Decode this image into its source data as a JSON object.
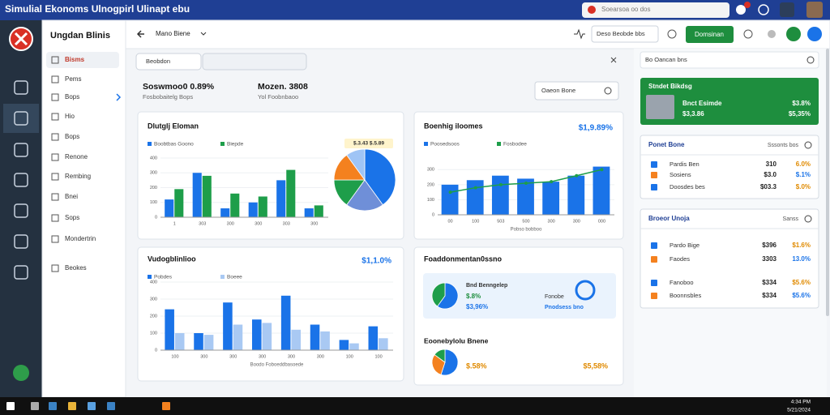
{
  "window_title": "Simulial Ekonoms Ulnogpirl Ulinapt ebu",
  "search_placeholder": "Soearsoa oo dos",
  "app_name": "Ungdan Blinis",
  "menu": [
    "Bisms",
    "Pems",
    "Bops",
    "Hio",
    "Bops",
    "Renone",
    "Rembing",
    "Bnei",
    "Sops",
    "Mondertrin",
    "Beokes"
  ],
  "header": {
    "view": "Mano Biene",
    "date_range": "Deso Beobde bbs",
    "button": "Domsinan"
  },
  "filters": [
    "Beobdon"
  ],
  "summary": [
    {
      "title": "Soswmoo0 0.89%",
      "subtitle": "Fosbobaitelg Bops"
    },
    {
      "title": "Mozen. 3808",
      "subtitle": "Yol Foobnbaoo"
    }
  ],
  "summary_button": "Oaeon Bone",
  "chart_data": [
    {
      "type": "bar",
      "title": "Dlutglj Eloman",
      "categories": [
        "1",
        "303",
        "300",
        "300",
        "303",
        "300"
      ],
      "series": [
        {
          "name": "Boobtbas Goono",
          "color": "#1a73e8",
          "values": [
            120,
            300,
            60,
            100,
            250,
            60
          ]
        },
        {
          "name": "Biepde",
          "color": "#1e9e4a",
          "values": [
            190,
            280,
            160,
            140,
            320,
            80
          ]
        }
      ],
      "ylim": [
        0,
        400
      ],
      "yticks": [
        0,
        100,
        200,
        300,
        400
      ]
    },
    {
      "type": "pie",
      "values": [
        40,
        20,
        15,
        15,
        10
      ],
      "colors": [
        "#1a73e8",
        "#6f8fd8",
        "#1e9e4a",
        "#f4811f",
        "#9fc4f5"
      ],
      "annotation": "$.3.43 $.5.89"
    },
    {
      "type": "bar",
      "title": "Boenhig iloomes",
      "annotation": "$1,9.89%",
      "categories": [
        "00",
        "100",
        "503",
        "500",
        "300",
        "300",
        "000"
      ],
      "series": [
        {
          "name": "Poosedsoos",
          "color": "#1a73e8",
          "values": [
            200,
            230,
            260,
            240,
            220,
            260,
            320
          ]
        },
        {
          "name": "Fosbodee",
          "color": "#1e9e4a",
          "type": "line",
          "values": [
            150,
            180,
            200,
            210,
            220,
            260,
            300
          ]
        }
      ],
      "xlabel": "Pobso bobboo",
      "ylim": [
        0,
        350
      ],
      "yticks": [
        0,
        100,
        200,
        300
      ]
    },
    {
      "type": "bar",
      "title": "Vudogblinlioo",
      "annotation": "$1,1.0%",
      "categories": [
        "100",
        "300",
        "300",
        "300",
        "300",
        "300",
        "100",
        "100"
      ],
      "series": [
        {
          "name": "Pobdes",
          "color": "#1a73e8",
          "values": [
            240,
            100,
            280,
            180,
            320,
            150,
            60,
            140
          ]
        },
        {
          "name": "Boeee",
          "color": "#a9c9f3",
          "values": [
            100,
            90,
            150,
            160,
            120,
            110,
            40,
            70
          ]
        }
      ],
      "xlabel": "Boodo Foboeddbasoede",
      "ylim": [
        0,
        400
      ],
      "yticks": [
        0,
        100,
        200,
        300,
        400
      ]
    }
  ],
  "card4": {
    "title": "Foaddonmentan0ssno",
    "panel_label": "Bnd Benngelep",
    "panel_values": [
      "$.8%",
      "$3,96%"
    ],
    "panel_label2": "Fonobe",
    "panel_sub": "Pnodsess bno",
    "pie_values": [
      60,
      40
    ],
    "section_title": "Eoonebylolu Bnene",
    "section_values": [
      "$.58%",
      "$5,58%"
    ],
    "pie2_values": [
      55,
      30,
      15
    ]
  },
  "right": {
    "top": "Bo Oancan bns",
    "green_title": "Stndet Bikdsg",
    "green_rows": [
      [
        "Bnct Esimde",
        "$3.8%"
      ],
      [
        "$3,3.86",
        "$5,35%"
      ]
    ],
    "card1_title": "Ponet Bone",
    "card1_right": "Sssonts bos",
    "card1_rows": [
      [
        "Pardis Ben",
        "310",
        "6.0%"
      ],
      [
        "Sosiens",
        "$3.0",
        "$.1%"
      ],
      [
        "Doosdes bes",
        "$03.3",
        "$.0%"
      ]
    ],
    "card2_title": "Broeor Unoja",
    "card2_right": "Sanss",
    "card2_rows": [
      [
        "Pardo Bige",
        "$396",
        "$1.6%"
      ],
      [
        "Faodes",
        "3303",
        "13.0%"
      ],
      [
        "Fanoboo",
        "$334",
        "$5.6%"
      ],
      [
        "Boonnsbles",
        "$334",
        "$5.6%"
      ]
    ]
  },
  "clock": [
    "4:34 PM",
    "5/21/2024"
  ]
}
